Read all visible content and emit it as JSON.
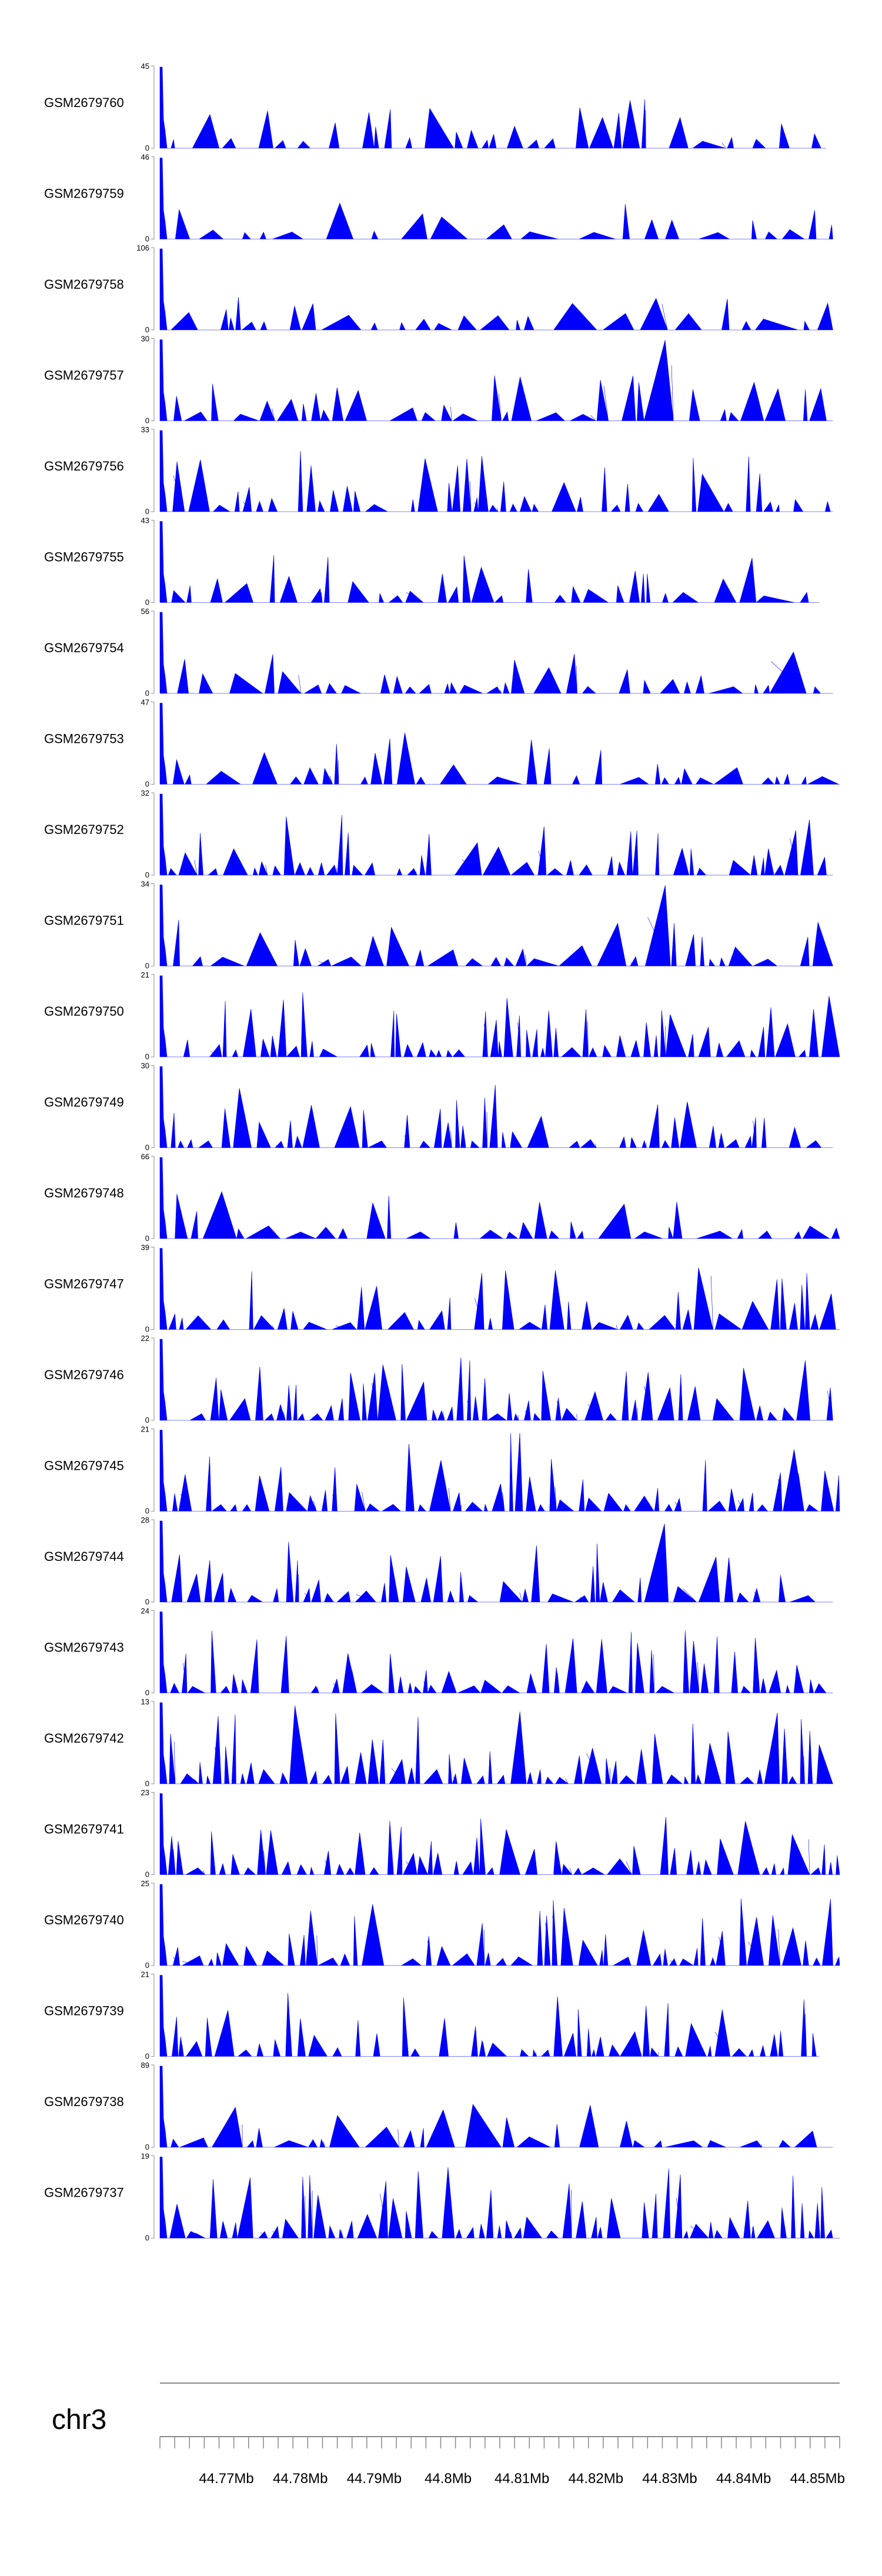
{
  "chart_data": {
    "type": "area",
    "chromosome": "chr3",
    "xlim_bp": [
      44761000,
      44853000
    ],
    "axis_ticks": [
      "44.77Mb",
      "44.78Mb",
      "44.79Mb",
      "44.8Mb",
      "44.81Mb",
      "44.82Mb",
      "44.83Mb",
      "44.84Mb",
      "44.85Mb"
    ],
    "axis_tick_values_bp": [
      44770000,
      44780000,
      44790000,
      44800000,
      44810000,
      44820000,
      44830000,
      44840000,
      44850000
    ],
    "series_color": "#0000ff",
    "tracks": [
      {
        "name": "GSM2679760",
        "ymax": "45",
        "ymin": "0",
        "max": 45,
        "seed": 11,
        "density": 0.45,
        "bumps": [
          [
            0.85,
            0.35
          ]
        ],
        "end": 0.98
      },
      {
        "name": "GSM2679759",
        "ymax": "46",
        "ymin": "0",
        "max": 46,
        "seed": 12,
        "density": 0.3,
        "bumps": [],
        "end": 0.99
      },
      {
        "name": "GSM2679758",
        "ymax": "106",
        "ymin": "0",
        "max": 106,
        "seed": 13,
        "density": 0.15,
        "bumps": [
          [
            0.71,
            0.15
          ],
          [
            0.72,
            0.12
          ]
        ],
        "end": 0.99
      },
      {
        "name": "GSM2679757",
        "ymax": "30",
        "ymin": "0",
        "max": 30,
        "seed": 14,
        "density": 0.65,
        "bumps": [
          [
            0.71,
            1.0
          ],
          [
            0.76,
            0.85
          ]
        ],
        "end": 0.99
      },
      {
        "name": "GSM2679756",
        "ymax": "33",
        "ymin": "0",
        "max": 33,
        "seed": 15,
        "density": 0.75,
        "bumps": [
          [
            0.94,
            0.6
          ]
        ],
        "end": 0.99
      },
      {
        "name": "GSM2679755",
        "ymax": "43",
        "ymin": "0",
        "max": 43,
        "seed": 16,
        "density": 0.4,
        "bumps": [
          [
            0.41,
            0.35
          ],
          [
            0.71,
            0.35
          ]
        ],
        "end": 0.97
      },
      {
        "name": "GSM2679754",
        "ymax": "56",
        "ymin": "0",
        "max": 56,
        "seed": 17,
        "density": 0.45,
        "bumps": [
          [
            0.19,
            0.35
          ]
        ],
        "end": 0.99
      },
      {
        "name": "GSM2679753",
        "ymax": "47",
        "ymin": "0",
        "max": 47,
        "seed": 18,
        "density": 0.5,
        "bumps": [
          [
            0.65,
            0.3
          ]
        ],
        "end": 1.0
      },
      {
        "name": "GSM2679752",
        "ymax": "32",
        "ymin": "0",
        "max": 32,
        "seed": 19,
        "density": 0.7,
        "bumps": [
          [
            0.41,
            0.7
          ]
        ],
        "end": 0.99
      },
      {
        "name": "GSM2679751",
        "ymax": "34",
        "ymin": "0",
        "max": 34,
        "seed": 20,
        "density": 0.45,
        "bumps": [
          [
            0.71,
            1.0
          ]
        ],
        "end": 0.99
      },
      {
        "name": "GSM2679750",
        "ymax": "21",
        "ymin": "0",
        "max": 21,
        "seed": 21,
        "density": 0.85,
        "bumps": [
          [
            0.27,
            0.7
          ]
        ],
        "end": 1.0
      },
      {
        "name": "GSM2679749",
        "ymax": "30",
        "ymin": "0",
        "max": 30,
        "seed": 22,
        "density": 0.75,
        "bumps": [
          [
            0.39,
            0.6
          ]
        ],
        "end": 0.99
      },
      {
        "name": "GSM2679748",
        "ymax": "66",
        "ymin": "0",
        "max": 66,
        "seed": 23,
        "density": 0.4,
        "bumps": [],
        "end": 1.0
      },
      {
        "name": "GSM2679747",
        "ymax": "39",
        "ymin": "0",
        "max": 39,
        "seed": 24,
        "density": 0.75,
        "bumps": [
          [
            0.78,
            0.75
          ]
        ],
        "end": 1.0
      },
      {
        "name": "GSM2679746",
        "ymax": "22",
        "ymin": "0",
        "max": 22,
        "seed": 25,
        "density": 0.9,
        "bumps": [],
        "end": 0.99
      },
      {
        "name": "GSM2679745",
        "ymax": "21",
        "ymin": "0",
        "max": 21,
        "seed": 26,
        "density": 0.9,
        "bumps": [
          [
            0.52,
            0.95
          ]
        ],
        "end": 1.0
      },
      {
        "name": "GSM2679744",
        "ymax": "28",
        "ymin": "0",
        "max": 28,
        "seed": 27,
        "density": 0.75,
        "bumps": [
          [
            0.71,
            0.95
          ]
        ],
        "end": 0.99
      },
      {
        "name": "GSM2679743",
        "ymax": "24",
        "ymin": "0",
        "max": 24,
        "seed": 28,
        "density": 0.85,
        "bumps": [
          [
            0.97,
            0.8
          ]
        ],
        "end": 0.99
      },
      {
        "name": "GSM2679742",
        "ymax": "13",
        "ymin": "0",
        "max": 13,
        "seed": 29,
        "density": 0.95,
        "bumps": [
          [
            0.19,
            0.95
          ]
        ],
        "end": 0.99
      },
      {
        "name": "GSM2679741",
        "ymax": "23",
        "ymin": "0",
        "max": 23,
        "seed": 30,
        "density": 0.75,
        "bumps": [
          [
            0.68,
            0.9
          ]
        ],
        "end": 1.0
      },
      {
        "name": "GSM2679740",
        "ymax": "25",
        "ymin": "0",
        "max": 25,
        "seed": 31,
        "density": 0.85,
        "bumps": [
          [
            0.59,
            0.7
          ]
        ],
        "end": 1.0
      },
      {
        "name": "GSM2679739",
        "ymax": "21",
        "ymin": "0",
        "max": 21,
        "seed": 32,
        "density": 0.85,
        "bumps": [
          [
            0.44,
            0.75
          ]
        ],
        "end": 0.97
      },
      {
        "name": "GSM2679738",
        "ymax": "89",
        "ymin": "0",
        "max": 89,
        "seed": 33,
        "density": 0.35,
        "bumps": [],
        "end": 0.99
      },
      {
        "name": "GSM2679737",
        "ymax": "19",
        "ymin": "0",
        "max": 19,
        "seed": 34,
        "density": 0.95,
        "bumps": [
          [
            0.33,
            0.95
          ]
        ],
        "end": 1.0
      }
    ]
  }
}
